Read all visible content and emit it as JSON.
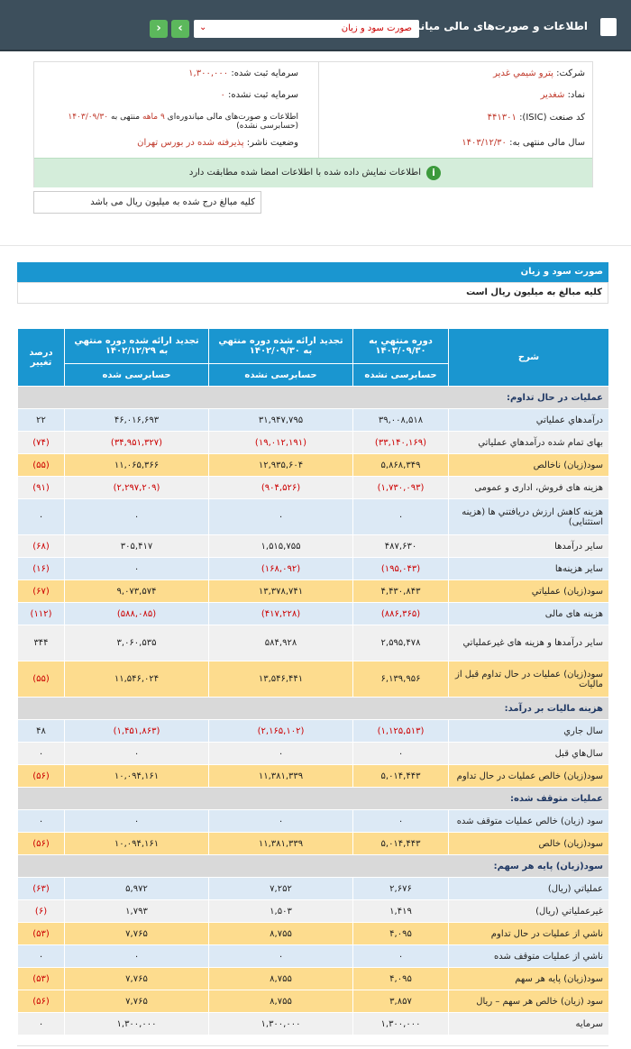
{
  "header": {
    "title": "اطلاعات و صورت‌های مالی میاندوره‌ای",
    "select": "صورت سود و زیان"
  },
  "info": {
    "company_label": "شرکت:",
    "company": "پترو شیمي غدیر",
    "symbol_label": "نماد:",
    "symbol": "شغدیر",
    "isic_label": "کد صنعت (ISIC):",
    "isic": "۴۴۱۳۰۱",
    "fy_label": "سال مالی منتهی به:",
    "fy": "۱۴۰۳/۱۲/۳۰",
    "capital_label": "سرمایه ثبت شده:",
    "capital": "۱,۳۰۰,۰۰۰",
    "uncap_label": "سرمایه ثبت نشده:",
    "uncap": "۰",
    "report": [
      "اطلاعات و صورت‌های مالی میاندوره‌ای",
      "۹ ماهه",
      "منتهی به",
      "۱۴۰۳/۰۹/۳۰",
      "(حسابرسی نشده)"
    ],
    "status_label": "وضعیت ناشر:",
    "status": "پذیرفته شده در بورس تهران"
  },
  "alert": "اطلاعات نمایش داده شده با اطلاعات امضا شده مطابقت دارد",
  "note": "کلیه مبالغ درج شده به میلیون ریال می باشد",
  "statement": {
    "title": "صورت سود و زیان",
    "subtitle": "کلیه مبالغ به میلیون ریال است"
  },
  "table": {
    "columns": [
      {
        "title": "شرح"
      },
      {
        "title": "دوره منتهي به ۱۴۰۳/۰۹/۳۰",
        "sub": "حسابرسی نشده"
      },
      {
        "title": "تجدید ارائه شده دوره منتهي به ۱۴۰۲/۰۹/۳۰",
        "sub": "حسابرسی نشده"
      },
      {
        "title": "تجدید ارائه شده دوره منتهي به ۱۴۰۲/۱۲/۲۹",
        "sub": "حسابرسی شده"
      },
      {
        "title": "درصد تغییر"
      }
    ],
    "rows": [
      [
        "عملیات در حال تداوم:"
      ],
      [
        "درآمدهاي عملياتي",
        "۳۹,۰۰۸,۵۱۸",
        "۳۱,۹۴۷,۷۹۵",
        "۴۶,۰۱۶,۶۹۳",
        "۲۲"
      ],
      [
        "بهاى تمام شده درآمدهاي عملياتي",
        "(۳۳,۱۴۰,۱۶۹)",
        "(۱۹,۰۱۲,۱۹۱)",
        "(۳۴,۹۵۱,۳۲۷)",
        "(۷۴)"
      ],
      [
        "سود(زيان) ناخالص",
        "۵,۸۶۸,۳۴۹",
        "۱۲,۹۳۵,۶۰۴",
        "۱۱,۰۶۵,۳۶۶",
        "(۵۵)"
      ],
      [
        "هزينه هاى فروش، ادارى و عمومى",
        "(۱,۷۳۰,۰۹۳)",
        "(۹۰۴,۵۲۶)",
        "(۲,۲۹۷,۲۰۹)",
        "(۹۱)"
      ],
      [
        "هزینه کاهش ارزش دریافتني ها (هزینه استثنایی)",
        "۰",
        "۰",
        "۰",
        "۰"
      ],
      [
        "ساير درآمدها",
        "۴۸۷,۶۳۰",
        "۱,۵۱۵,۷۵۵",
        "۳۰۵,۴۱۷",
        "(۶۸)"
      ],
      [
        "سایر هزینه‌ها",
        "(۱۹۵,۰۴۳)",
        "(۱۶۸,۰۹۲)",
        "۰",
        "(۱۶)"
      ],
      [
        "سود(زيان) عملياتي",
        "۴,۴۳۰,۸۴۳",
        "۱۳,۳۷۸,۷۴۱",
        "۹,۰۷۳,۵۷۴",
        "(۶۷)"
      ],
      [
        "هزينه هاى مالى",
        "(۸۸۶,۳۶۵)",
        "(۴۱۷,۲۲۸)",
        "(۵۸۸,۰۸۵)",
        "(۱۱۲)"
      ],
      [
        "ساير درآمدها و هزينه هاى غيرعملياتي",
        "۲,۵۹۵,۴۷۸",
        "۵۸۴,۹۲۸",
        "۳,۰۶۰,۵۳۵",
        "۳۴۴"
      ],
      [
        "سود(زيان) عمليات در حال تداوم قبل از ماليات",
        "۶,۱۳۹,۹۵۶",
        "۱۳,۵۴۶,۴۴۱",
        "۱۱,۵۴۶,۰۲۴",
        "(۵۵)"
      ],
      [
        "هزينه ماليات بر درآمد:"
      ],
      [
        "سال جاري",
        "(۱,۱۲۵,۵۱۳)",
        "(۲,۱۶۵,۱۰۲)",
        "(۱,۴۵۱,۸۶۳)",
        "۴۸"
      ],
      [
        "سال‌هاي قبل",
        "۰",
        "۰",
        "۰",
        "۰"
      ],
      [
        "سود(زيان) خالص عمليات در حال تداوم",
        "۵,۰۱۴,۴۴۳",
        "۱۱,۳۸۱,۳۳۹",
        "۱۰,۰۹۴,۱۶۱",
        "(۵۶)"
      ],
      [
        "عمليات متوقف شده:"
      ],
      [
        "سود (زيان) خالص عمليات متوقف شده",
        "۰",
        "۰",
        "۰",
        "۰"
      ],
      [
        "سود(زيان) خالص",
        "۵,۰۱۴,۴۴۳",
        "۱۱,۳۸۱,۳۳۹",
        "۱۰,۰۹۴,۱۶۱",
        "(۵۶)"
      ],
      [
        "سود(زيان) پايه هر سهم:"
      ],
      [
        "عملياتي (ريال)",
        "۲,۶۷۶",
        "۷,۲۵۲",
        "۵,۹۷۲",
        "(۶۳)"
      ],
      [
        "غيرعملياتي (ريال)",
        "۱,۴۱۹",
        "۱,۵۰۳",
        "۱,۷۹۳",
        "(۶)"
      ],
      [
        "ناشي از عمليات در حال تداوم",
        "۴,۰۹۵",
        "۸,۷۵۵",
        "۷,۷۶۵",
        "(۵۳)"
      ],
      [
        "ناشي از عمليات متوقف شده",
        "۰",
        "۰",
        "۰",
        "۰"
      ],
      [
        "سود(زيان) پايه هر سهم",
        "۴,۰۹۵",
        "۸,۷۵۵",
        "۷,۷۶۵",
        "(۵۳)"
      ],
      [
        "سود (زيان) خالص هر سهم – ريال",
        "۳,۸۵۷",
        "۸,۷۵۵",
        "۷,۷۶۵",
        "(۵۶)"
      ],
      [
        "سرمايه",
        "۱,۳۰۰,۰۰۰",
        "۱,۳۰۰,۰۰۰",
        "۱,۳۰۰,۰۰۰",
        "۰"
      ]
    ]
  }
}
